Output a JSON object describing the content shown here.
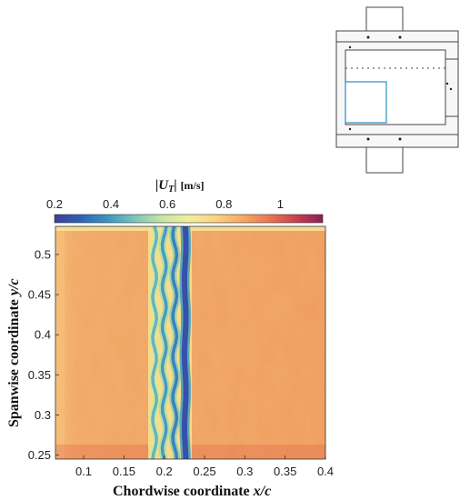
{
  "chart_data": {
    "type": "heatmap",
    "title": "",
    "colorbar": {
      "label_main": "|U",
      "label_sub": "T",
      "label_end": "|",
      "unit": "[m/s]",
      "range": [
        0.2,
        1.15
      ],
      "ticks": [
        0.2,
        0.4,
        0.6,
        0.8,
        1
      ],
      "tick_labels": [
        "0.2",
        "0.4",
        "0.6",
        "0.8",
        "1"
      ],
      "colormap": [
        "#3b3f9a",
        "#2f63b5",
        "#3d97c2",
        "#7cc6b9",
        "#c5e6a3",
        "#f3ef9c",
        "#fbd37f",
        "#f7a963",
        "#e97751",
        "#c94150",
        "#8a1f57"
      ]
    },
    "xlabel_prefix": "Chordwise coordinate ",
    "xlabel_var": "x/c",
    "ylabel_prefix": "Spanwise coordinate ",
    "ylabel_var": "y/c",
    "xlim": [
      0.065,
      0.4
    ],
    "ylim": [
      0.245,
      0.535
    ],
    "xticks": [
      0.1,
      0.15,
      0.2,
      0.25,
      0.3,
      0.35,
      0.4
    ],
    "xtick_labels": [
      "0.1",
      "0.15",
      "0.2",
      "0.25",
      "0.3",
      "0.35",
      "0.4"
    ],
    "yticks": [
      0.25,
      0.3,
      0.35,
      0.4,
      0.45,
      0.5
    ],
    "ytick_labels": [
      "0.25",
      "0.3",
      "0.35",
      "0.4",
      "0.45",
      "0.5"
    ],
    "field": {
      "background_value": 0.95,
      "upstream_value": 0.88,
      "transition_band_x": [
        0.18,
        0.225
      ],
      "low_speed_streaks": [
        {
          "x": 0.188,
          "value": 0.45
        },
        {
          "x": 0.2,
          "value": 0.4
        },
        {
          "x": 0.213,
          "value": 0.35
        },
        {
          "x": 0.226,
          "value": 0.25
        }
      ]
    }
  },
  "inset": {
    "description_visible": false
  }
}
